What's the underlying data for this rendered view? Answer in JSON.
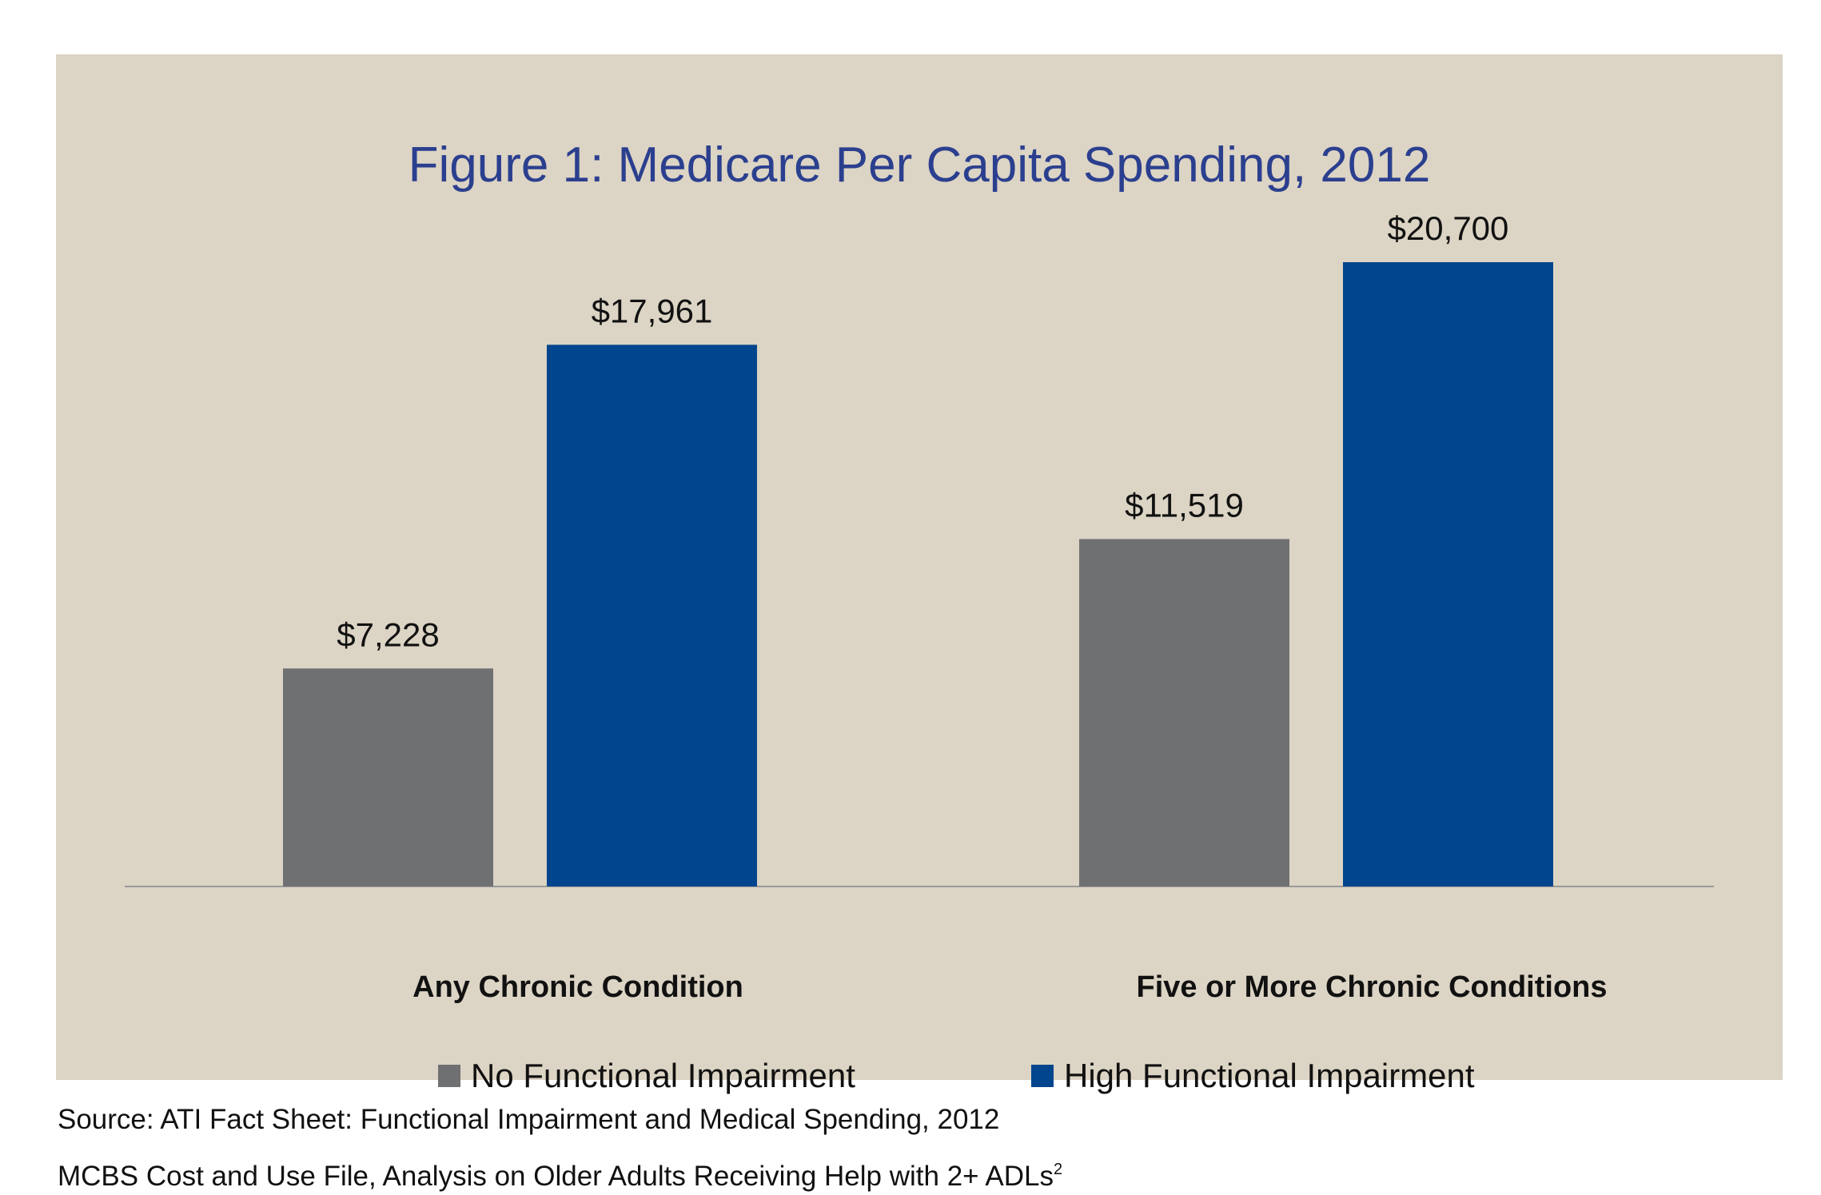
{
  "chart_data": {
    "type": "bar",
    "title": "Figure 1: Medicare Per Capita Spending, 2012",
    "categories": [
      "Any Chronic Condition",
      "Five or More Chronic Conditions"
    ],
    "series": [
      {
        "name": "No Functional Impairment",
        "color": "#6f7072",
        "values": [
          7228,
          11519
        ],
        "labels": [
          "$7,228",
          "$11,519"
        ]
      },
      {
        "name": "High Functional Impairment",
        "color": "#00458d",
        "values": [
          17961,
          20700
        ],
        "labels": [
          "$17,961",
          "$20,700"
        ]
      }
    ],
    "ylim": [
      0,
      20700
    ],
    "grid": false,
    "legend": "bottom"
  },
  "source": {
    "line1": "Source: ATI Fact Sheet: Functional Impairment and Medical Spending, 2012",
    "line2": "MCBS Cost and Use File, Analysis on Older Adults Receiving Help with 2+ ADLs",
    "line2_sup": "2"
  },
  "colors": {
    "background": "#dcd4c4",
    "title": "#2b3f8f",
    "axis": "#9a9a9a"
  }
}
